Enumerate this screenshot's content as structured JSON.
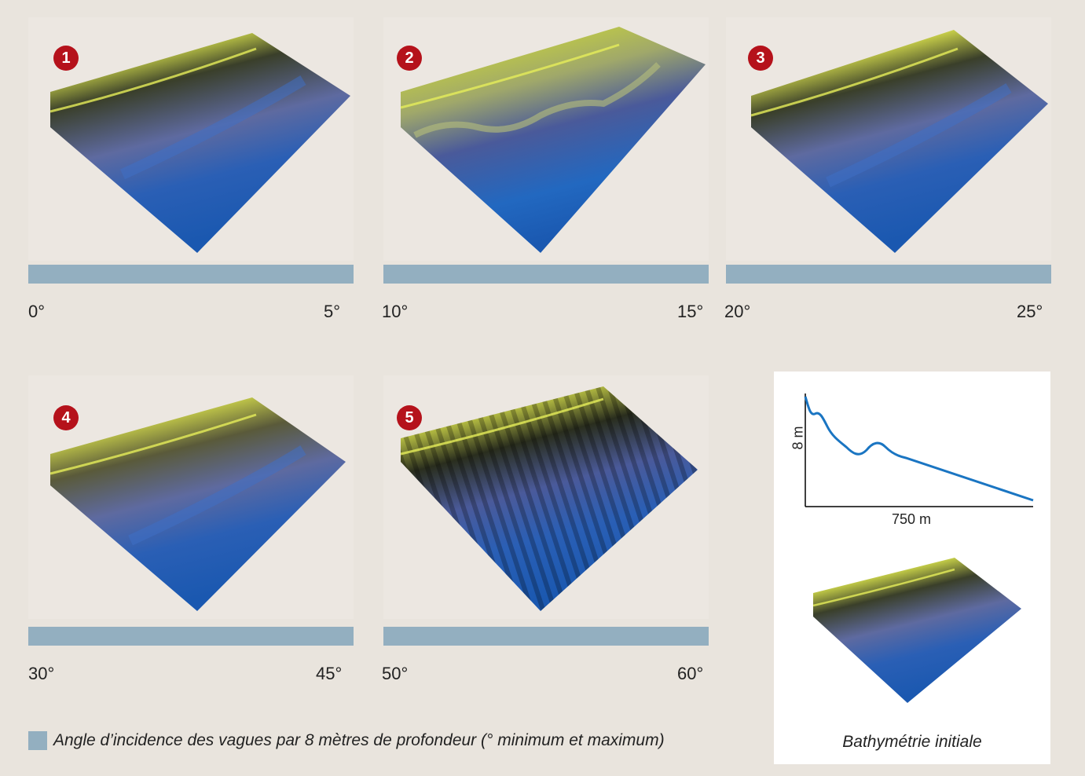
{
  "panels": [
    {
      "number": "1",
      "min_label": "0°",
      "max_label": "5°",
      "angle_min": 0,
      "angle_max": 5
    },
    {
      "number": "2",
      "min_label": "10°",
      "max_label": "15°",
      "angle_min": 10,
      "angle_max": 15
    },
    {
      "number": "3",
      "min_label": "20°",
      "max_label": "25°",
      "angle_min": 20,
      "angle_max": 25
    },
    {
      "number": "4",
      "min_label": "30°",
      "max_label": "45°",
      "angle_min": 30,
      "angle_max": 45
    },
    {
      "number": "5",
      "min_label": "50°",
      "max_label": "60°",
      "angle_min": 50,
      "angle_max": 60
    }
  ],
  "legend": {
    "text": "Angle d’incidence des vagues par 8 mètres de profondeur (° minimum et maximum)",
    "swatch_color": "#93afc0"
  },
  "bathymetry": {
    "caption": "Bathymétrie initiale",
    "y_label": "8 m",
    "x_label": "750 m",
    "line_color": "#1a75c2"
  },
  "colors": {
    "badge": "#b5121b",
    "crest": "#c8d23a",
    "water": "#1f5fb5"
  }
}
